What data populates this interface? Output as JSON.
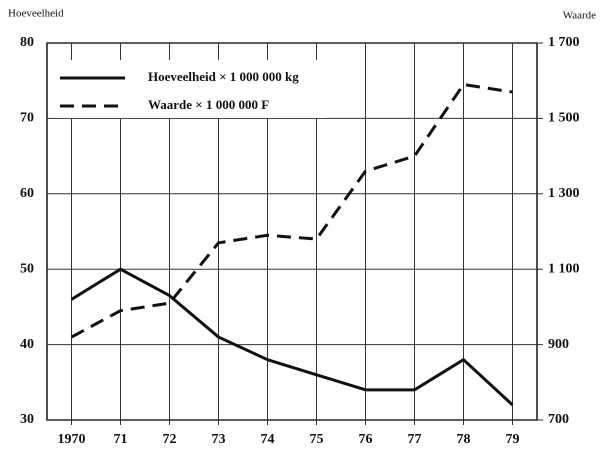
{
  "chart_data": {
    "type": "line",
    "y_label": "Hoeveelheid",
    "y2_label": "Waarde",
    "categories": [
      "1970",
      "71",
      "72",
      "73",
      "74",
      "75",
      "76",
      "77",
      "78",
      "79"
    ],
    "series": [
      {
        "name": "Hoeveelheid × 1 000 000 kg",
        "color": "#111111",
        "dash": "solid",
        "axis": "y",
        "values": [
          46,
          50,
          46.5,
          41,
          38,
          36,
          34,
          34,
          38,
          32
        ]
      },
      {
        "name": "Waarde × 1 000 000 F",
        "color": "#111111",
        "dash": "dashed",
        "axis": "y2",
        "values": [
          920,
          990,
          1010,
          1170,
          1190,
          1180,
          1360,
          1400,
          1590,
          1570
        ]
      }
    ],
    "ylim": [
      30,
      80
    ],
    "yticks": [
      30,
      40,
      50,
      60,
      70,
      80
    ],
    "y2lim": [
      700,
      1700
    ],
    "y2ticks": [
      700,
      900,
      {
        "value": 1100,
        "label": "1 100"
      },
      {
        "value": 1300,
        "label": "1 300"
      },
      {
        "value": 1500,
        "label": "1 500"
      },
      {
        "value": 1700,
        "label": "1 700"
      }
    ],
    "grid": true,
    "legend": "upper left"
  }
}
